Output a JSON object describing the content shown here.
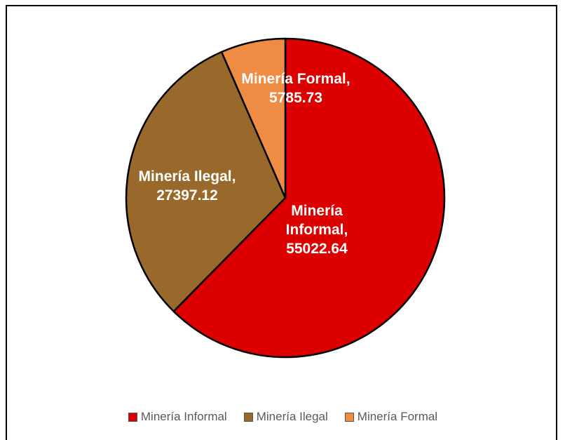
{
  "chart_data": {
    "type": "pie",
    "categories": [
      "Minería Informal",
      "Minería Ilegal",
      "Minería Formal"
    ],
    "values": [
      55022.64,
      27397.12,
      5785.73
    ],
    "value_labels": [
      "55022.64",
      "27397.12",
      "5785.73"
    ],
    "colors": [
      "#dd0000",
      "#98692b",
      "#ef8c44"
    ],
    "start_angle_deg": 0,
    "direction": "clockwise",
    "legend_position": "bottom",
    "data_labels": [
      [
        "Minería",
        "Informal,",
        "55022.64"
      ],
      [
        "Minería Ilegal,",
        "27397.12"
      ],
      [
        "Minería Formal,",
        "5785.73"
      ]
    ]
  }
}
